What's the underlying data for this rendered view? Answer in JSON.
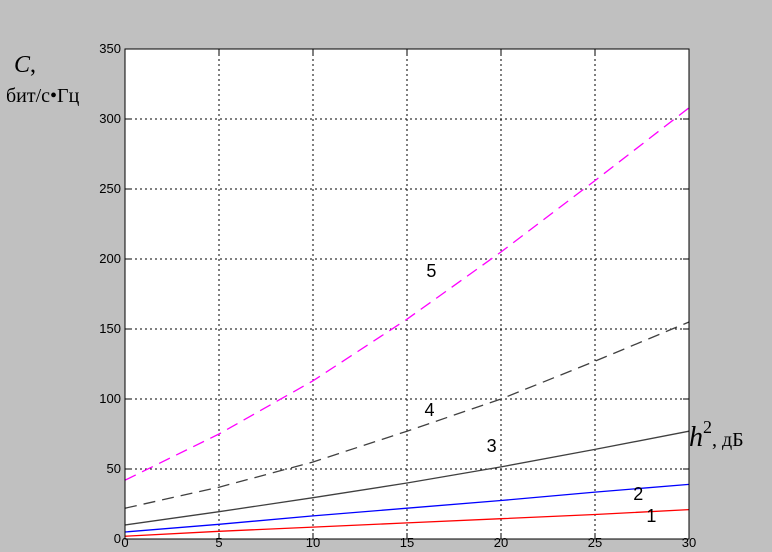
{
  "chart_data": {
    "type": "line",
    "title": "",
    "background_color": "#c0c0c0",
    "plot_background_color": "#ffffff",
    "grid": true,
    "grid_style": "dotted",
    "xlim": [
      0,
      30
    ],
    "ylim": [
      0,
      350
    ],
    "x_ticks": [
      0,
      5,
      10,
      15,
      20,
      25,
      30
    ],
    "y_ticks": [
      0,
      50,
      100,
      150,
      200,
      250,
      300,
      350
    ],
    "x_tick_labels": [
      "0",
      "5",
      "10",
      "15",
      "20",
      "25",
      "30"
    ],
    "y_tick_labels": [
      "0",
      "50",
      "100",
      "150",
      "200",
      "250",
      "300",
      "350"
    ],
    "ylabel": {
      "symbol": "C",
      "comma": ",",
      "unit": "бит/с•Гц"
    },
    "xlabel": {
      "symbol": "h",
      "superscript": "2",
      "unit": ", дБ"
    },
    "x": [
      0,
      5,
      10,
      15,
      20,
      25,
      30
    ],
    "series": [
      {
        "label": "1",
        "color": "#ff0000",
        "style": "solid",
        "values": [
          2,
          5.5,
          8.5,
          11.5,
          14.5,
          17.5,
          21
        ]
      },
      {
        "label": "2",
        "color": "#0000ff",
        "style": "solid",
        "values": [
          5,
          10.5,
          16.5,
          22,
          27.5,
          33.5,
          39
        ]
      },
      {
        "label": "3",
        "color": "#404040",
        "style": "solid",
        "values": [
          10,
          19.5,
          29.5,
          40,
          51.5,
          64,
          77
        ]
      },
      {
        "label": "4",
        "color": "#404040",
        "style": "dashed",
        "values": [
          22,
          37,
          55,
          77,
          100,
          127,
          155
        ]
      },
      {
        "label": "5",
        "color": "#ff00ff",
        "style": "dashed",
        "values": [
          42,
          75,
          113,
          157,
          205,
          256,
          308
        ]
      }
    ],
    "series_label_positions": [
      {
        "label": "1",
        "x": 28,
        "y": 12
      },
      {
        "label": "2",
        "x": 27.3,
        "y": 28
      },
      {
        "label": "3",
        "x": 19.5,
        "y": 62
      },
      {
        "label": "4",
        "x": 16.2,
        "y": 88
      },
      {
        "label": "5",
        "x": 16.3,
        "y": 187
      }
    ]
  }
}
